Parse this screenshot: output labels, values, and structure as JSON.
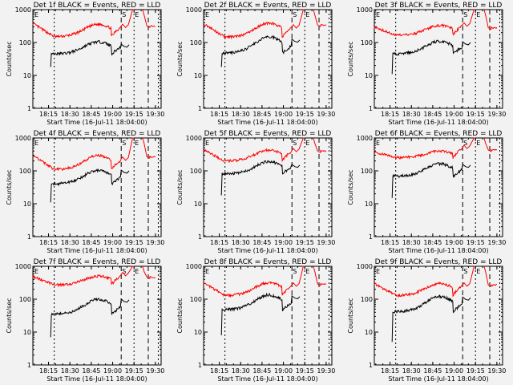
{
  "chart_data": [
    {
      "type": "line",
      "title": "Det 1f BLACK = Events, RED = LLD",
      "det": "1f",
      "ev_base": 45,
      "ev_peak": 105,
      "lld_base": 150,
      "lld_peak": 360,
      "lld_start": 380,
      "ev_start": 18,
      "post_lld": 320,
      "post_ev": 85
    },
    {
      "type": "line",
      "title": "Det 2f BLACK = Events, RED = LLD",
      "det": "2f",
      "ev_base": 48,
      "ev_peak": 150,
      "lld_base": 145,
      "lld_peak": 390,
      "lld_start": 380,
      "ev_start": 18,
      "post_lld": 340,
      "post_ev": 120
    },
    {
      "type": "line",
      "title": "Det 3f BLACK = Events, RED = LLD",
      "det": "3f",
      "ev_base": 45,
      "ev_peak": 110,
      "lld_base": 165,
      "lld_peak": 330,
      "lld_start": 300,
      "ev_start": 11,
      "post_lld": 280,
      "post_ev": 100
    },
    {
      "type": "line",
      "title": "Det 4f BLACK = Events, RED = LLD",
      "det": "4f",
      "ev_base": 40,
      "ev_peak": 105,
      "lld_base": 110,
      "lld_peak": 290,
      "lld_start": 300,
      "ev_start": 11,
      "post_lld": 270,
      "post_ev": 100
    },
    {
      "type": "line",
      "title": "Det 5f BLACK = Events, RED = LLD",
      "det": "5f",
      "ev_base": 80,
      "ev_peak": 190,
      "lld_base": 200,
      "lld_peak": 430,
      "lld_start": 430,
      "ev_start": 18,
      "post_lld": 400,
      "post_ev": 150
    },
    {
      "type": "line",
      "title": "Det 6f BLACK = Events, RED = LLD",
      "det": "6f",
      "ev_base": 68,
      "ev_peak": 165,
      "lld_base": 250,
      "lld_peak": 400,
      "lld_start": 380,
      "ev_start": 15,
      "post_lld": 430,
      "post_ev": 150
    },
    {
      "type": "line",
      "title": "Det 7f BLACK = Events, RED = LLD",
      "det": "7f",
      "ev_base": 35,
      "ev_peak": 100,
      "lld_base": 270,
      "lld_peak": 500,
      "lld_start": 500,
      "ev_start": 7,
      "post_lld": 470,
      "post_ev": 95
    },
    {
      "type": "line",
      "title": "Det 8f BLACK = Events, RED = LLD",
      "det": "8f",
      "ev_base": 48,
      "ev_peak": 135,
      "lld_base": 130,
      "lld_peak": 320,
      "lld_start": 320,
      "ev_start": 8,
      "post_lld": 290,
      "post_ev": 120
    },
    {
      "type": "line",
      "title": "Det 9f BLACK = Events, RED = LLD",
      "det": "9f",
      "ev_base": 42,
      "ev_peak": 120,
      "lld_base": 130,
      "lld_peak": 300,
      "lld_start": 300,
      "ev_start": 5,
      "post_lld": 270,
      "post_ev": 110
    }
  ],
  "common": {
    "ylabel": "Counts/sec",
    "xlabel": "Start Time (16-Jul-11 18:04:00)",
    "xticks": [
      "18:15",
      "18:30",
      "18:45",
      "19:00",
      "19:15",
      "19:30"
    ],
    "yticks": [
      "1",
      "10",
      "100",
      "1000"
    ],
    "ylim": [
      1,
      1000
    ],
    "yscale": "log",
    "xrange_minutes": [
      0,
      84
    ],
    "markers": [
      "E",
      "S",
      "E"
    ],
    "series": [
      {
        "name": "Events",
        "color": "#000000"
      },
      {
        "name": "LLD",
        "color": "#ff0000"
      }
    ]
  }
}
